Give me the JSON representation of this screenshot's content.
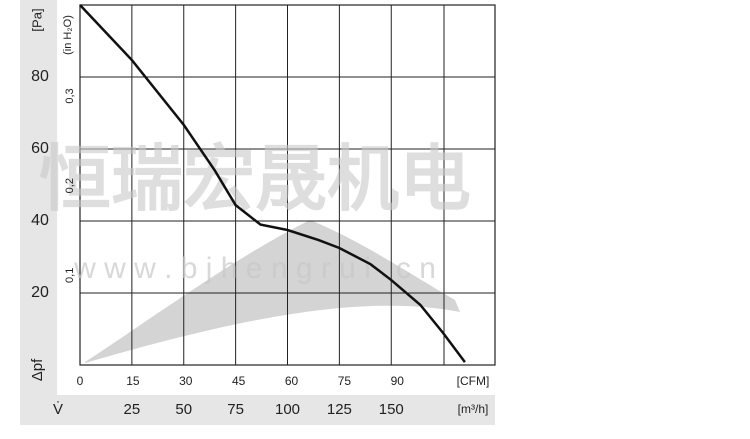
{
  "chart_data": {
    "type": "line",
    "watermark": "恒瑞宏晟机电",
    "watermark_url": "w w w . b j h e n g r u i . c n",
    "y_label": "Δpf",
    "y_unit": "[Pa]",
    "y2_unit": "(in H₂O)",
    "x_label": "V̇",
    "x_unit": "[m³/h]",
    "x2_unit": "[CFM]",
    "xlim": [
      0,
      200
    ],
    "xticks": [
      25,
      50,
      75,
      100,
      125,
      150
    ],
    "x2lim": [
      0,
      117.72
    ],
    "x2ticks": [
      0,
      15,
      30,
      45,
      60,
      75,
      90
    ],
    "ylim": [
      0,
      100
    ],
    "yticks": [
      20,
      40,
      60,
      80
    ],
    "y2lim": [
      0,
      0.4015
    ],
    "y2ticks": [
      {
        "value": 0.1,
        "label": "0,1"
      },
      {
        "value": 0.2,
        "label": "0,2"
      },
      {
        "value": 0.3,
        "label": "0,3"
      }
    ],
    "grid": true,
    "series": [
      {
        "color": "#111111",
        "x": [
          0,
          25,
          50,
          65,
          75,
          87,
          100,
          115,
          125,
          140,
          150,
          164,
          175,
          185.5
        ],
        "values": [
          100,
          84.7,
          66.7,
          54,
          44.4,
          39,
          37.5,
          34.7,
          32.5,
          28,
          23.6,
          16.7,
          8.9,
          0.8
        ]
      }
    ]
  }
}
